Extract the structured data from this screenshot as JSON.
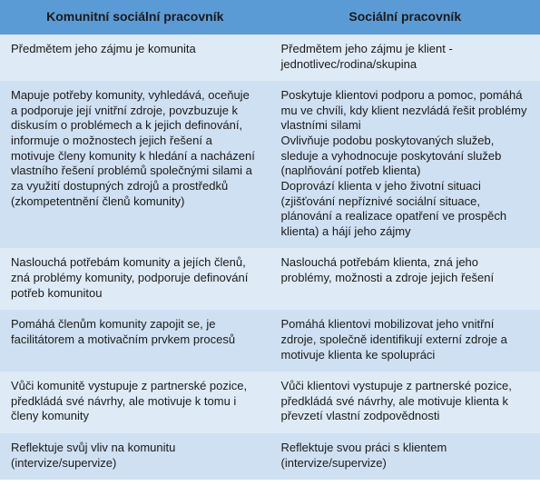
{
  "colors": {
    "headerBg": "#5b9bd5",
    "row1Bg": "#deebf7",
    "row2Bg": "#cfe0f2"
  },
  "headers": {
    "left": "Komunitní sociální pracovník",
    "right": "Sociální pracovník"
  },
  "rows": [
    {
      "left": "Předmětem jeho zájmu je komunita",
      "right": "Předmětem jeho zájmu je klient - jednotlivec/rodina/skupina"
    },
    {
      "left": "Mapuje potřeby komunity, vyhledává, oceňuje a podporuje její vnitřní zdroje, povzbuzuje k diskusím o problémech a k jejich definování, informuje o možnostech jejich řešení a motivuje členy komunity k hledání a nacházení vlastního řešení problémů společnými silami a za využití dostupných zdrojů a prostředků (zkompetentnění členů komunity)",
      "right": "Poskytuje klientovi podporu a pomoc, pomáhá mu ve chvíli, kdy klient nezvládá řešit problémy vlastními silami\nOvlivňuje podobu poskytovaných služeb, sleduje a vyhodnocuje poskytování služeb (naplňování potřeb klienta)\nDoprovází klienta v jeho životní situaci (zjišťování nepříznivé sociální situace, plánování a realizace opatření ve prospěch klienta) a hájí jeho zájmy"
    },
    {
      "left": "Naslouchá potřebám komunity a jejích členů, zná problémy komunity, podporuje definování potřeb komunitou",
      "right": "Naslouchá potřebám klienta, zná jeho problémy, možnosti a zdroje jejich řešení"
    },
    {
      "left": "Pomáhá členům komunity zapojit se, je facilitátorem a motivačním prvkem procesů",
      "right": "Pomáhá klientovi mobilizovat jeho vnitřní zdroje, společně identifikují externí zdroje a motivuje klienta ke spolupráci"
    },
    {
      "left": "Vůči komunitě vystupuje z partnerské pozice, předkládá své návrhy, ale motivuje k tomu i členy komunity",
      "right": "Vůči klientovi vystupuje z partnerské pozice, předkládá své návrhy, ale motivuje klienta k převzetí vlastní zodpovědnosti"
    },
    {
      "left": "Reflektuje svůj vliv na komunitu (intervize/supervize)",
      "right": "Reflektuje svou práci s klientem (intervize/supervize)"
    }
  ]
}
